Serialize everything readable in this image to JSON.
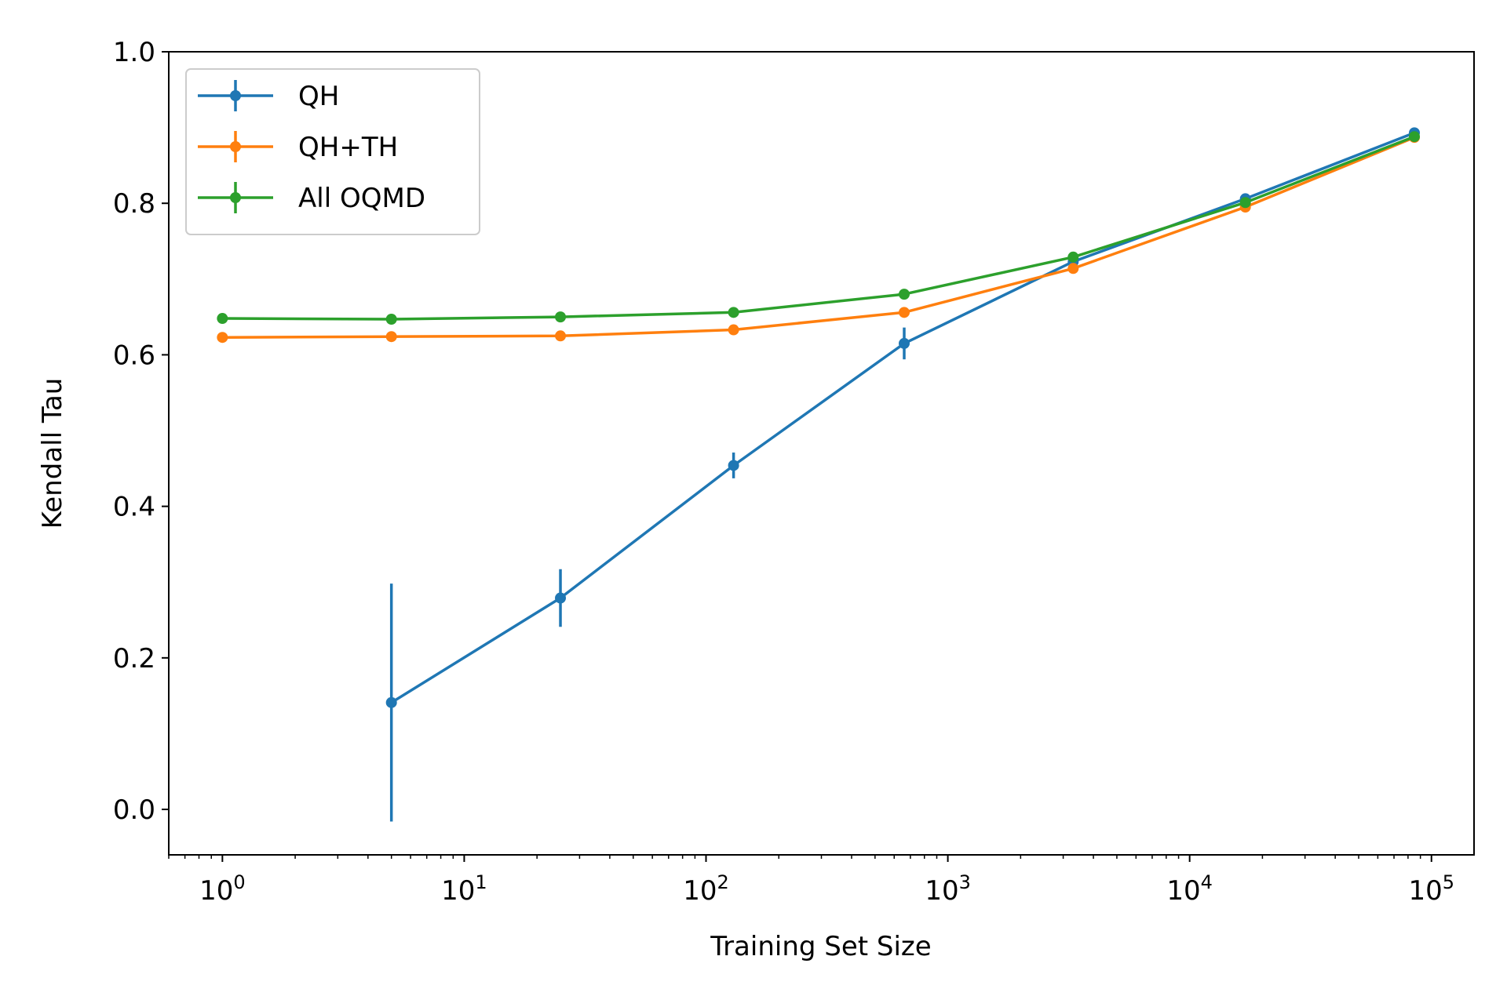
{
  "chart_data": {
    "type": "line",
    "xlabel": "Training Set Size",
    "ylabel": "Kendall Tau",
    "xscale": "log",
    "xlim": [
      0.6,
      150000
    ],
    "ylim": [
      -0.06,
      1.0
    ],
    "x_ticks": [
      {
        "value": 1,
        "base": "10",
        "exp": "0"
      },
      {
        "value": 10,
        "base": "10",
        "exp": "1"
      },
      {
        "value": 100,
        "base": "10",
        "exp": "2"
      },
      {
        "value": 1000,
        "base": "10",
        "exp": "3"
      },
      {
        "value": 10000,
        "base": "10",
        "exp": "4"
      },
      {
        "value": 100000,
        "base": "10",
        "exp": "5"
      }
    ],
    "y_ticks": [
      {
        "value": 0.0,
        "label": "0.0"
      },
      {
        "value": 0.2,
        "label": "0.2"
      },
      {
        "value": 0.4,
        "label": "0.4"
      },
      {
        "value": 0.6,
        "label": "0.6"
      },
      {
        "value": 0.8,
        "label": "0.8"
      },
      {
        "value": 1.0,
        "label": "1.0"
      }
    ],
    "grid": false,
    "legend_position": "upper-left",
    "series": [
      {
        "name": "QH",
        "color": "#1f77b4",
        "points": [
          {
            "x": 5,
            "y": 0.141,
            "err": 0.157
          },
          {
            "x": 25,
            "y": 0.279,
            "err": 0.038
          },
          {
            "x": 130,
            "y": 0.454,
            "err": 0.017
          },
          {
            "x": 660,
            "y": 0.615,
            "err": 0.021
          },
          {
            "x": 3300,
            "y": 0.723,
            "err": 0.004
          },
          {
            "x": 17000,
            "y": 0.806,
            "err": 0.003
          },
          {
            "x": 85000,
            "y": 0.893,
            "err": 0.002
          }
        ]
      },
      {
        "name": "QH+TH",
        "color": "#ff7f0e",
        "points": [
          {
            "x": 1,
            "y": 0.623,
            "err": 0.003
          },
          {
            "x": 5,
            "y": 0.624,
            "err": 0.003
          },
          {
            "x": 25,
            "y": 0.625,
            "err": 0.003
          },
          {
            "x": 130,
            "y": 0.633,
            "err": 0.003
          },
          {
            "x": 660,
            "y": 0.656,
            "err": 0.003
          },
          {
            "x": 3300,
            "y": 0.714,
            "err": 0.003
          },
          {
            "x": 17000,
            "y": 0.795,
            "err": 0.003
          },
          {
            "x": 85000,
            "y": 0.887,
            "err": 0.002
          }
        ]
      },
      {
        "name": "All OQMD",
        "color": "#2ca02c",
        "points": [
          {
            "x": 1,
            "y": 0.648,
            "err": 0.003
          },
          {
            "x": 5,
            "y": 0.647,
            "err": 0.003
          },
          {
            "x": 25,
            "y": 0.65,
            "err": 0.003
          },
          {
            "x": 130,
            "y": 0.656,
            "err": 0.003
          },
          {
            "x": 660,
            "y": 0.68,
            "err": 0.003
          },
          {
            "x": 3300,
            "y": 0.729,
            "err": 0.003
          },
          {
            "x": 17000,
            "y": 0.801,
            "err": 0.003
          },
          {
            "x": 85000,
            "y": 0.888,
            "err": 0.002
          }
        ]
      }
    ]
  }
}
